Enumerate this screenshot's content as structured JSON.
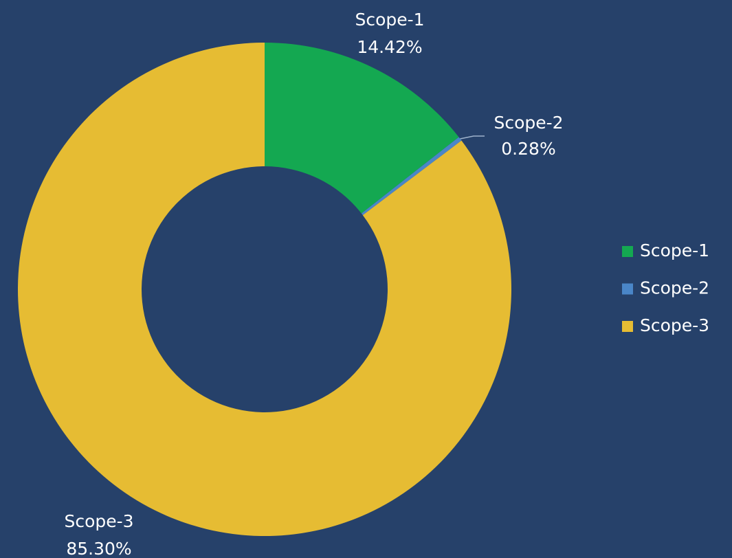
{
  "chart_data": {
    "type": "donut",
    "categories": [
      "Scope-1",
      "Scope-2",
      "Scope-3"
    ],
    "values": [
      14.42,
      0.28,
      85.3
    ],
    "value_labels": [
      "14.42%",
      "0.28%",
      "85.30%"
    ],
    "colors": [
      "#14a851",
      "#4a86c8",
      "#e6bc33"
    ],
    "legend": "right"
  }
}
